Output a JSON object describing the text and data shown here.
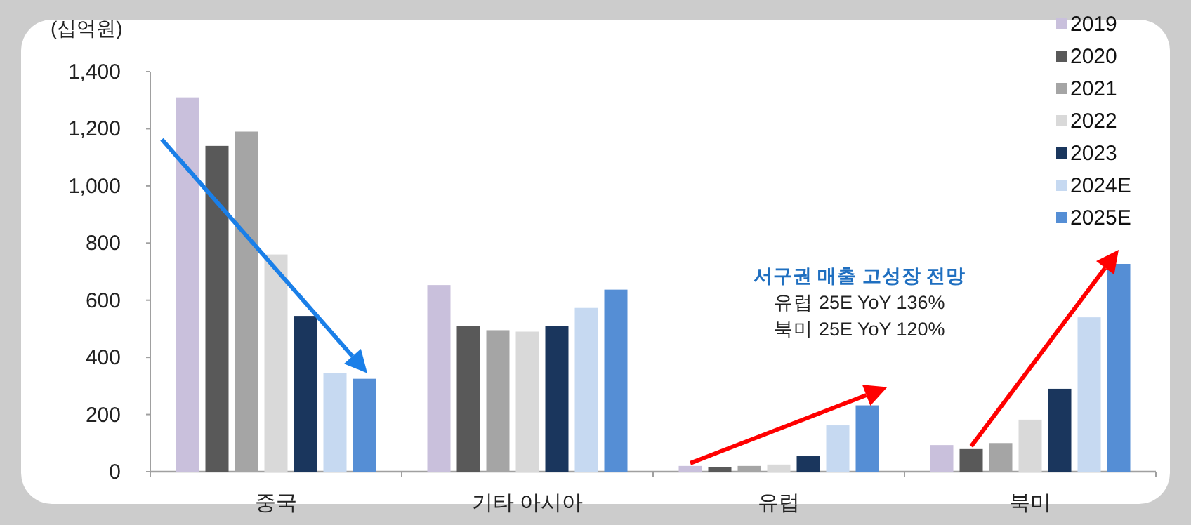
{
  "chart_data": {
    "type": "bar",
    "ylabel": "(십억원)",
    "categories": [
      "중국",
      "기타 아시아",
      "유럽",
      "북미"
    ],
    "series": [
      {
        "name": "2019",
        "color": "#c9c0dc",
        "values": [
          1310,
          653,
          20,
          93
        ]
      },
      {
        "name": "2020",
        "color": "#595959",
        "values": [
          1140,
          510,
          15,
          79
        ]
      },
      {
        "name": "2021",
        "color": "#a5a5a5",
        "values": [
          1190,
          495,
          20,
          100
        ]
      },
      {
        "name": "2022",
        "color": "#d9d9d9",
        "values": [
          760,
          490,
          25,
          182
        ]
      },
      {
        "name": "2023",
        "color": "#1a365d",
        "values": [
          545,
          510,
          54,
          290
        ]
      },
      {
        "name": "2024E",
        "color": "#c6d9f1",
        "values": [
          345,
          573,
          162,
          540
        ]
      },
      {
        "name": "2025E",
        "color": "#558ed5",
        "values": [
          325,
          637,
          232,
          727
        ]
      }
    ],
    "ylim": [
      0,
      1400
    ],
    "yticks": [
      {
        "value": 0,
        "label": "0"
      },
      {
        "value": 200,
        "label": "200"
      },
      {
        "value": 400,
        "label": "400"
      },
      {
        "value": 600,
        "label": "600"
      },
      {
        "value": 800,
        "label": "800"
      },
      {
        "value": 1000,
        "label": "1,000"
      },
      {
        "value": 1200,
        "label": "1,200"
      },
      {
        "value": 1400,
        "label": "1,400"
      }
    ],
    "legend": "top right",
    "grid": false,
    "annotations": [
      "서구권 매출 고성장 전망",
      "유럽 25E YoY 136%",
      "북미 25E YoY 120%"
    ]
  }
}
